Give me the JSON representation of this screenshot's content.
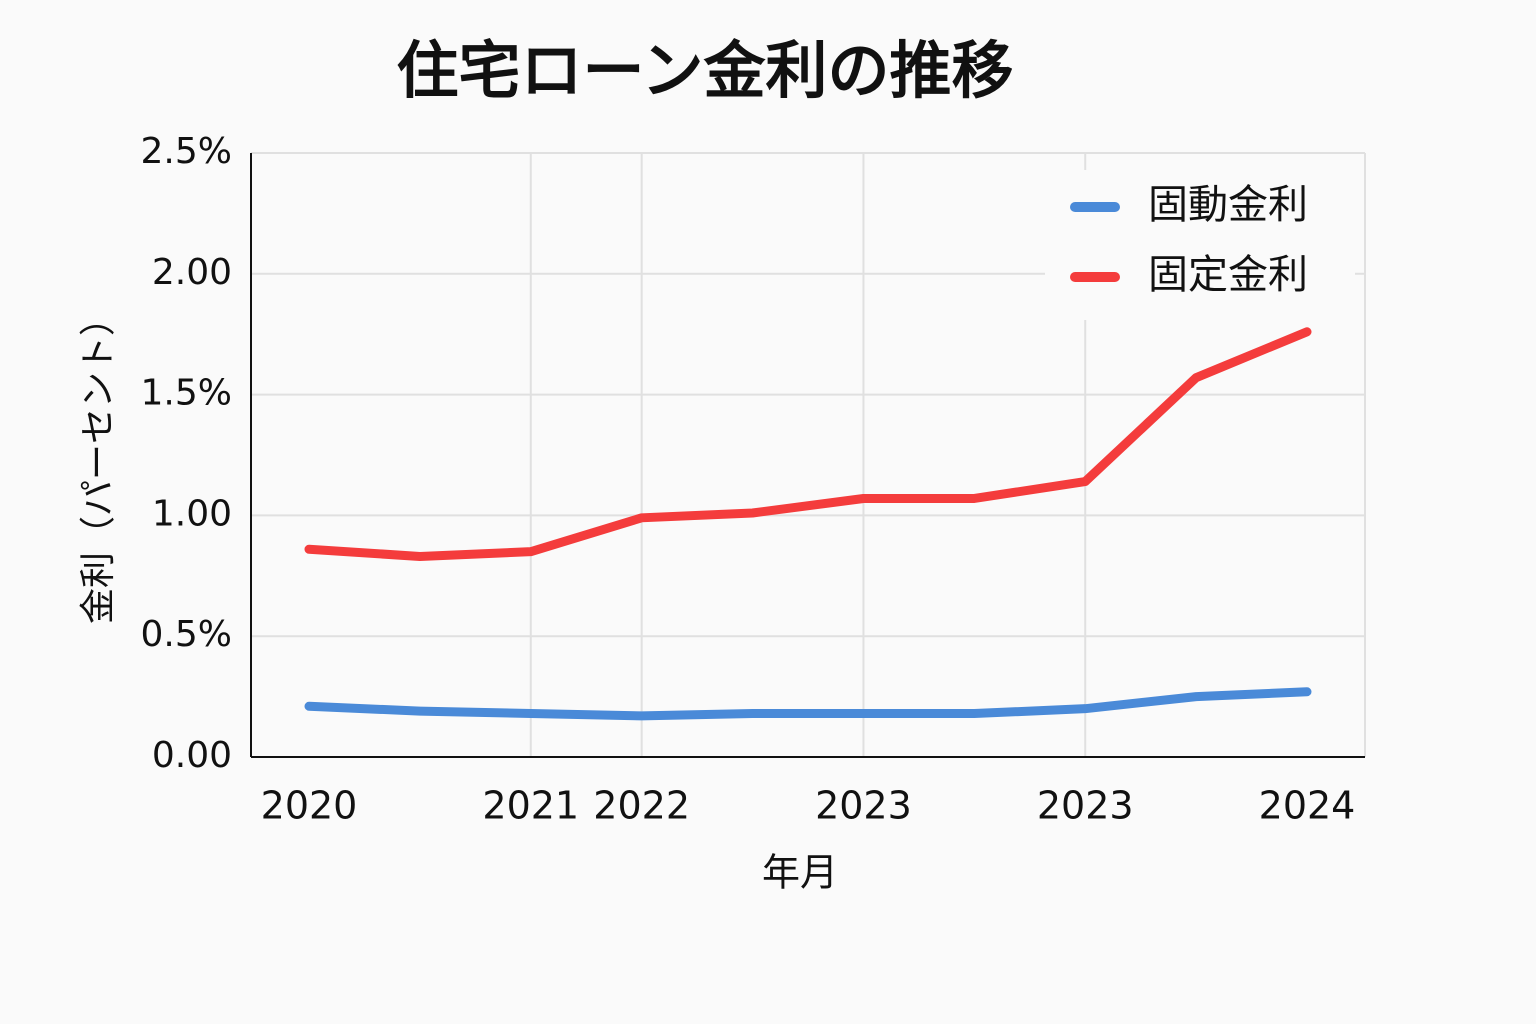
{
  "chart_data": {
    "type": "line",
    "title": "住宅ローン金利の推移",
    "x_label": "年月",
    "y_label": "金利（パーセント）",
    "categories": [
      "2020",
      null,
      "2021",
      "2022",
      null,
      "2023",
      null,
      "2023",
      null,
      "2024"
    ],
    "series": [
      {
        "name": "固動金利",
        "color": "#4a8ad8",
        "values": [
          0.21,
          0.19,
          0.18,
          0.17,
          0.18,
          0.18,
          0.18,
          0.2,
          0.25,
          0.27
        ]
      },
      {
        "name": "固定金利",
        "color": "#f43c3c",
        "values": [
          0.86,
          0.83,
          0.85,
          0.99,
          1.01,
          1.07,
          1.07,
          1.14,
          1.57,
          1.76
        ]
      }
    ],
    "ylim": [
      0,
      2.5
    ],
    "yticks": [
      {
        "value": 0,
        "label": "0.00"
      },
      {
        "value": 0.5,
        "label": "0.5%"
      },
      {
        "value": 1,
        "label": "1.00"
      },
      {
        "value": 1.5,
        "label": "1.5%"
      },
      {
        "value": 2,
        "label": "2.00"
      },
      {
        "value": 2.5,
        "label": "2.5%"
      }
    ],
    "grid": true,
    "legend": "upper right"
  }
}
